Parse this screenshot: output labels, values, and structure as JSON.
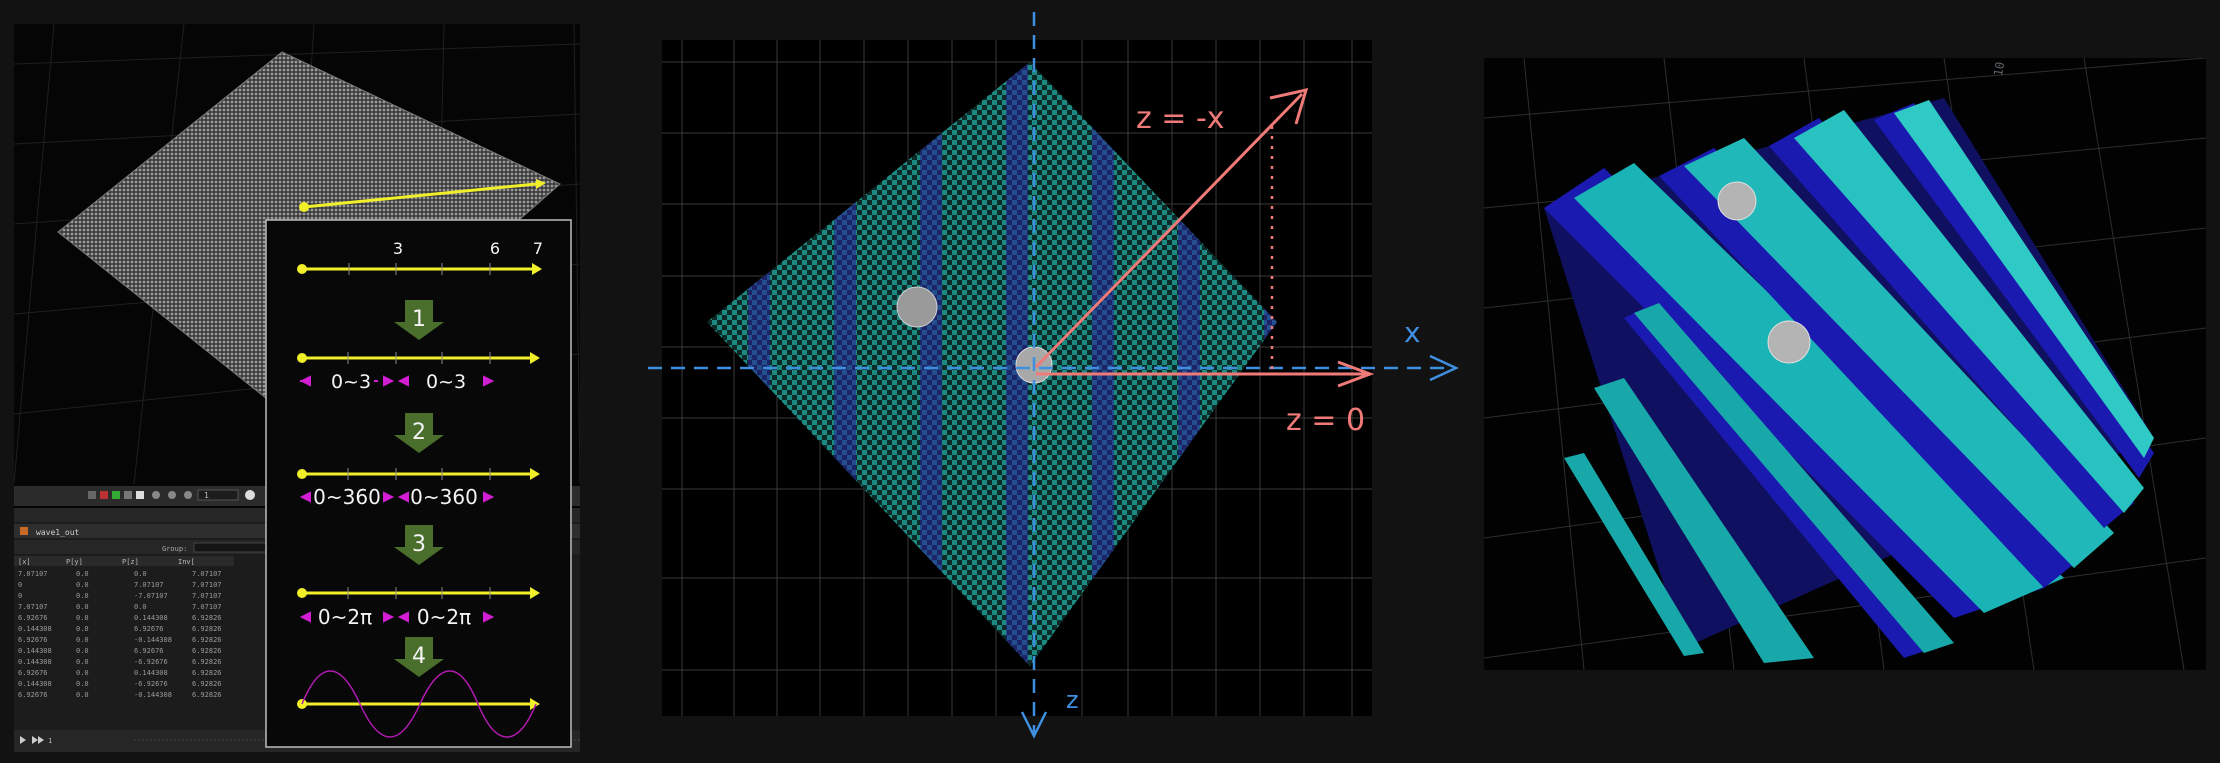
{
  "steps": {
    "axis_ticks": [
      "3",
      "6",
      "7"
    ],
    "step_numbers": [
      "1",
      "2",
      "3",
      "4"
    ],
    "range_labels": [
      "0~3",
      "0~3",
      "0~360",
      "0~360",
      "0~2π",
      "0~2π"
    ]
  },
  "axes": {
    "x_label": "x",
    "z_label": "z",
    "diag_label": "z = -x",
    "horiz_label": "z = 0"
  },
  "houdini_ui": {
    "node_name": "wave1_out",
    "frame": "1",
    "group_label": "Group:",
    "columns": [
      "[x]",
      "P[y]",
      "P[z]",
      "Inv["
    ],
    "rows": [
      [
        "7.07107",
        "0.0",
        "0.0",
        "7.07107"
      ],
      [
        "0",
        "0.0",
        "7.07107",
        "7.07107"
      ],
      [
        "0",
        "0.0",
        "-7.07107",
        "7.07107"
      ],
      [
        "7.07107",
        "0.0",
        "0.0",
        "7.07107"
      ],
      [
        "6.92676",
        "0.0",
        "0.144308",
        "6.92826"
      ],
      [
        "0.144308",
        "0.0",
        "6.92676",
        "6.92826"
      ],
      [
        "6.92676",
        "0.0",
        "-0.144308",
        "6.92826"
      ],
      [
        "0.144308",
        "0.0",
        "6.92676",
        "6.92826"
      ],
      [
        "0.144308",
        "0.0",
        "-6.92676",
        "6.92826"
      ],
      [
        "6.92676",
        "0.0",
        "0.144308",
        "6.92826"
      ],
      [
        "0.144308",
        "0.0",
        "-6.92676",
        "6.92826"
      ],
      [
        "6.92676",
        "0.0",
        "-0.144308",
        "6.92826"
      ]
    ],
    "timeline_frame": "1"
  },
  "right_view": {
    "grid_label": "10"
  },
  "colors": {
    "yellow": "#f0ef2a",
    "magenta": "#d21ed2",
    "green_arrow": "#4a6e2c",
    "red_annot": "#f07a78",
    "blue_axis": "#3f8fe0",
    "teal": "#18b0b4",
    "teal_light": "#3cc8c4",
    "dark_blue": "#1a1aa8",
    "checker_teal": "#177e78"
  }
}
